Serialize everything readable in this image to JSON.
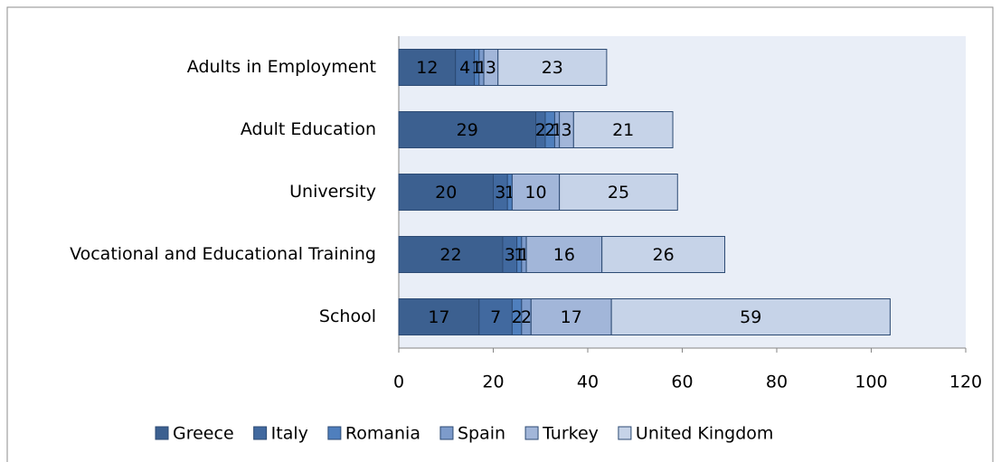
{
  "chart_data": {
    "type": "bar",
    "orientation": "horizontal",
    "stacked": true,
    "categories": [
      "Adults in Employment",
      "Adult Education",
      "University",
      "Vocational and Educational Training",
      "School"
    ],
    "series": [
      {
        "name": "Greece",
        "color": "#3c6090",
        "values": [
          12,
          29,
          20,
          22,
          17
        ]
      },
      {
        "name": "Italy",
        "color": "#41699f",
        "values": [
          4,
          2,
          3,
          3,
          7
        ]
      },
      {
        "name": "Romania",
        "color": "#4f7fbd",
        "values": [
          1,
          2,
          1,
          1,
          2
        ]
      },
      {
        "name": "Spain",
        "color": "#7d9bcb",
        "values": [
          1,
          1,
          null,
          1,
          2
        ]
      },
      {
        "name": "Turkey",
        "color": "#a2b6d9",
        "values": [
          3,
          3,
          10,
          16,
          17
        ]
      },
      {
        "name": "United Kingdom",
        "color": "#c6d3e8",
        "values": [
          23,
          21,
          25,
          26,
          59
        ]
      }
    ],
    "xlim": [
      0,
      120
    ],
    "xticks": [
      0,
      20,
      40,
      60,
      80,
      100,
      120
    ],
    "legend": "bottom"
  }
}
